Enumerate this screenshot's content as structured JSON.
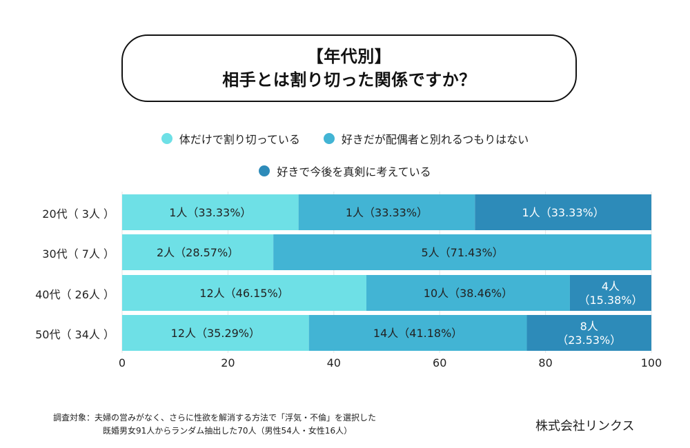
{
  "title": {
    "line1": "【年代別】",
    "line2": "相手とは割り切った関係ですか？"
  },
  "chart_data": {
    "type": "bar",
    "orientation": "horizontal",
    "stacked": true,
    "title": "【年代別】相手とは割り切った関係ですか？",
    "xlabel": "",
    "ylabel": "",
    "xlim": [
      0,
      100
    ],
    "x_ticks": [
      "0",
      "20",
      "40",
      "60",
      "80",
      "100"
    ],
    "grid": true,
    "legend_position": "top-center",
    "categories": [
      "20代（3人）",
      "30代（7人）",
      "40代（26人）",
      "50代（34人）"
    ],
    "category_labels": [
      "20代（ 3人 ）",
      "30代（ 7人 ）",
      "40代（ 26人 ）",
      "50代（ 34人 ）"
    ],
    "series": [
      {
        "name": "体だけで割り切っている",
        "color": "#6ee0e6",
        "label_color": "#222222",
        "values": [
          33.33,
          28.57,
          46.15,
          35.29
        ],
        "counts": [
          1,
          2,
          12,
          12
        ],
        "labels": [
          "1人（33.33%）",
          "2人（28.57%）",
          "12人（46.15%）",
          "12人（35.29%）"
        ]
      },
      {
        "name": "好きだが配偶者と別れるつもりはない",
        "color": "#42b4d4",
        "label_color": "#222222",
        "values": [
          33.33,
          71.43,
          38.46,
          41.18
        ],
        "counts": [
          1,
          5,
          10,
          14
        ],
        "labels": [
          "1人（33.33%）",
          "5人（71.43%）",
          "10人（38.46%）",
          "14人（41.18%）"
        ]
      },
      {
        "name": "好きで今後を真剣に考えている",
        "color": "#2d8bb9",
        "label_color": "#ffffff",
        "values": [
          33.33,
          0,
          15.38,
          23.53
        ],
        "counts": [
          1,
          0,
          4,
          8
        ],
        "labels": [
          "1人（33.33%）",
          "",
          "4人\n（15.38%）",
          "8人\n（23.53%）"
        ]
      }
    ]
  },
  "footer": {
    "note_line1": "調査対象：夫婦の営みがなく、さらに性欲を解消する方法で「浮気・不倫」を選択した",
    "note_line2": "既婚男女91人からランダム抽出した70人（男性54人・女性16人）",
    "company": "株式会社リンクス"
  }
}
